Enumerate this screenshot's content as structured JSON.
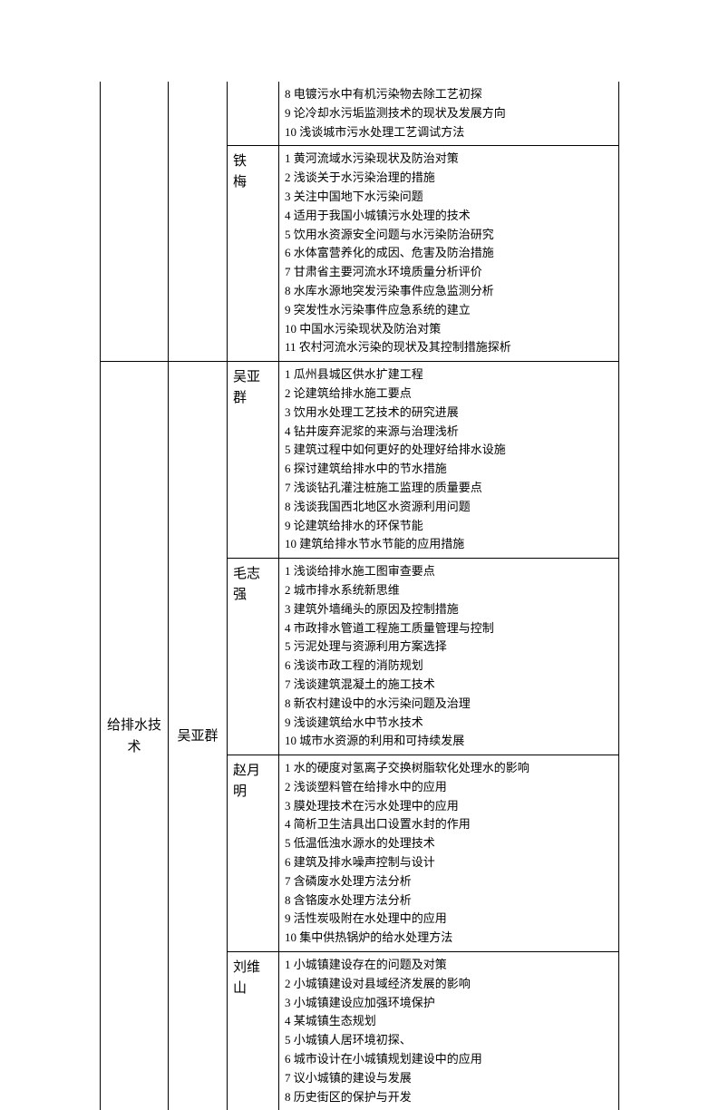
{
  "section1": {
    "major": "",
    "group": "",
    "teachers": [
      {
        "name": "",
        "topics": [
          "8 电镀污水中有机污染物去除工艺初探",
          "9 论冷却水污垢监测技术的现状及发展方向",
          "10 浅谈城市污水处理工艺调试方法"
        ]
      },
      {
        "name": "铁　梅",
        "topics": [
          "1 黄河流域水污染现状及防治对策",
          "2 浅谈关于水污染治理的措施",
          "3 关注中国地下水污染问题",
          "4 适用于我国小城镇污水处理的技术",
          "5 饮用水资源安全问题与水污染防治研究",
          "6 水体富营养化的成因、危害及防治措施",
          "7 甘肃省主要河流水环境质量分析评价",
          "8 水库水源地突发污染事件应急监测分析",
          "9 突发性水污染事件应急系统的建立",
          "10 中国水污染现状及防治对策",
          "11 农村河流水污染的现状及其控制措施探析"
        ]
      }
    ]
  },
  "section2": {
    "major": "给排水技术",
    "group": "吴亚群",
    "teachers": [
      {
        "name": "吴亚群",
        "topics": [
          "1 瓜州县城区供水扩建工程",
          "2 论建筑给排水施工要点",
          "3 饮用水处理工艺技术的研究进展",
          "4 钻井废弃泥浆的来源与治理浅析",
          "5 建筑过程中如何更好的处理好给排水设施",
          "6 探讨建筑给排水中的节水措施",
          "7 浅谈钻孔灌注桩施工监理的质量要点",
          "8 浅谈我国西北地区水资源利用问题",
          "9 论建筑给排水的环保节能",
          "10 建筑给排水节水节能的应用措施"
        ]
      },
      {
        "name": "毛志强",
        "topics": [
          "1 浅谈给排水施工图审查要点",
          "2 城市排水系统新思维",
          "3 建筑外墙绳头的原因及控制措施",
          "4 市政排水管道工程施工质量管理与控制",
          "5 污泥处理与资源利用方案选择",
          "6 浅谈市政工程的消防规划",
          "7 浅谈建筑混凝土的施工技术",
          "8 新农村建设中的水污染问题及治理",
          "9 浅谈建筑给水中节水技术",
          "10 城市水资源的利用和可持续发展"
        ]
      },
      {
        "name": "赵月明",
        "topics": [
          "1 水的硬度对氢离子交换树脂软化处理水的影响",
          "2 浅谈塑料管在给排水中的应用",
          "3 膜处理技术在污水处理中的应用",
          "4 简析卫生洁具出口设置水封的作用",
          "5 低温低浊水源水的处理技术",
          "6 建筑及排水噪声控制与设计",
          "7 含磷废水处理方法分析",
          "8 含铬废水处理方法分析",
          "9 活性炭吸附在水处理中的应用",
          "10 集中供热锅炉的给水处理方法"
        ]
      },
      {
        "name": "刘维山",
        "topics": [
          "1 小城镇建设存在的问题及对策",
          "2 小城镇建设对县域经济发展的影响",
          "3 小城镇建设应加强环境保护",
          "4 某城镇生态规划",
          "5 小城镇人居环境初探、",
          "6 城市设计在小城镇规划建设中的应用",
          "7 议小城镇的建设与发展",
          "8 历史街区的保护与开发"
        ]
      }
    ]
  }
}
